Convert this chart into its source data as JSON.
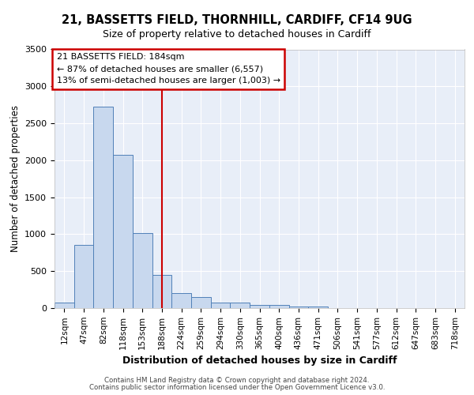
{
  "title1": "21, BASSETTS FIELD, THORNHILL, CARDIFF, CF14 9UG",
  "title2": "Size of property relative to detached houses in Cardiff",
  "xlabel": "Distribution of detached houses by size in Cardiff",
  "ylabel": "Number of detached properties",
  "categories": [
    "12sqm",
    "47sqm",
    "82sqm",
    "118sqm",
    "153sqm",
    "188sqm",
    "224sqm",
    "259sqm",
    "294sqm",
    "330sqm",
    "365sqm",
    "400sqm",
    "436sqm",
    "471sqm",
    "506sqm",
    "541sqm",
    "577sqm",
    "612sqm",
    "647sqm",
    "683sqm",
    "718sqm"
  ],
  "values": [
    75,
    850,
    2720,
    2070,
    1010,
    450,
    200,
    150,
    80,
    80,
    45,
    45,
    20,
    18,
    5,
    3,
    2,
    2,
    2,
    2,
    2
  ],
  "bar_color": "#c8d8ee",
  "bar_edge_color": "#5080b8",
  "vline_color": "#cc0000",
  "annotation_title": "21 BASSETTS FIELD: 184sqm",
  "annotation_line1": "← 87% of detached houses are smaller (6,557)",
  "annotation_line2": "13% of semi-detached houses are larger (1,003) →",
  "annotation_box_facecolor": "#ffffff",
  "annotation_box_edgecolor": "#cc0000",
  "ylim": [
    0,
    3500
  ],
  "yticks": [
    0,
    500,
    1000,
    1500,
    2000,
    2500,
    3000,
    3500
  ],
  "background_color": "#e8eef8",
  "grid_color": "#ffffff",
  "footer1": "Contains HM Land Registry data © Crown copyright and database right 2024.",
  "footer2": "Contains public sector information licensed under the Open Government Licence v3.0."
}
